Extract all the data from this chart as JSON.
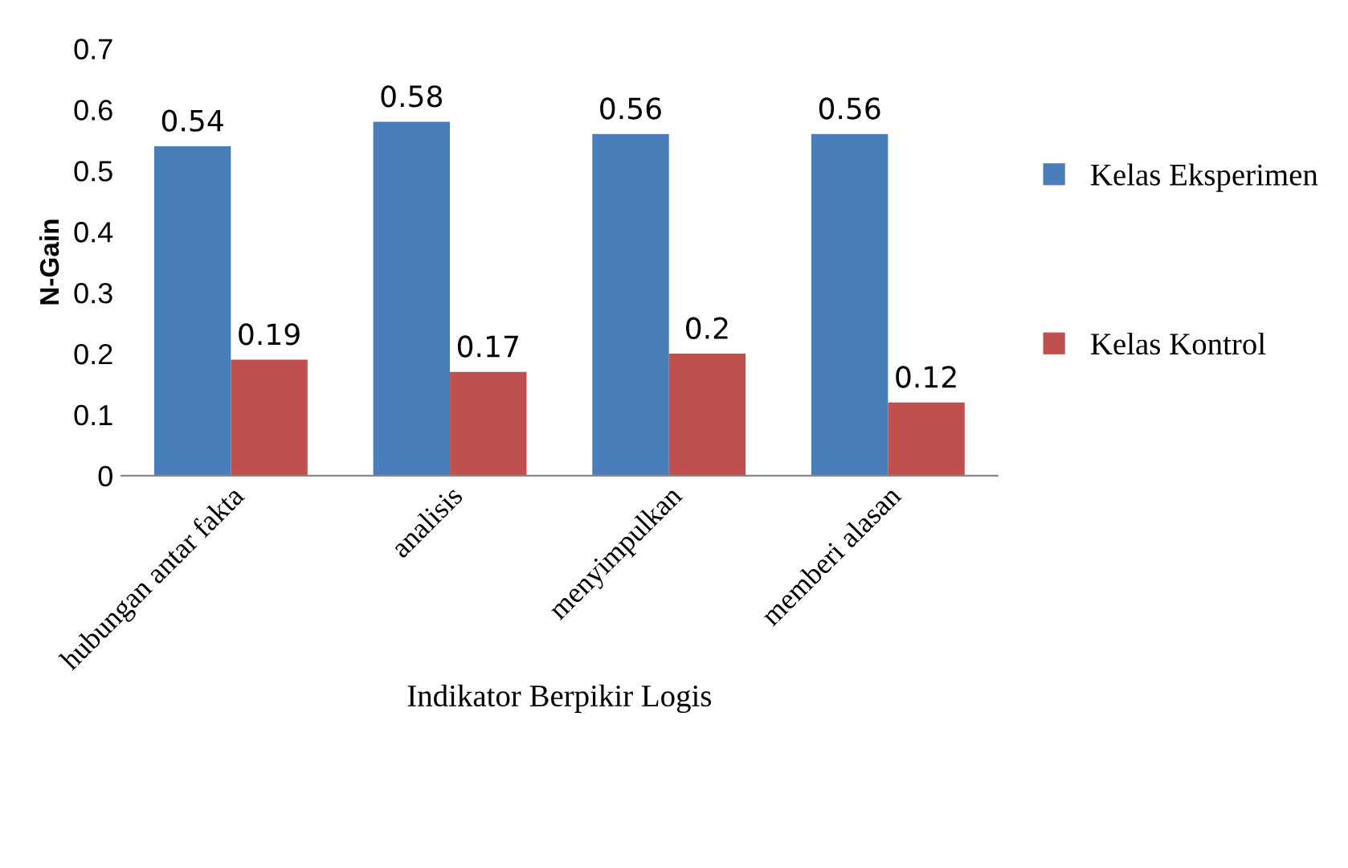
{
  "chart_data": {
    "type": "bar",
    "xlabel": "Indikator Berpikir Logis",
    "ylabel": "N-Gain",
    "categories": [
      "hubungan antar fakta",
      "analisis",
      "menyimpulkan",
      "memberi alasan"
    ],
    "series": [
      {
        "name": "Kelas Eksperimen",
        "color": "#4a7ebb",
        "values": [
          0.54,
          0.58,
          0.56,
          0.56
        ]
      },
      {
        "name": "Kelas Kontrol",
        "color": "#c0504d",
        "values": [
          0.19,
          0.17,
          0.2,
          0.12
        ]
      }
    ],
    "ylim": [
      0,
      0.7
    ],
    "yticks": [
      0,
      0.1,
      0.2,
      0.3,
      0.4,
      0.5,
      0.6,
      0.7
    ],
    "data_labels": true,
    "legend": "right",
    "grid": false
  }
}
